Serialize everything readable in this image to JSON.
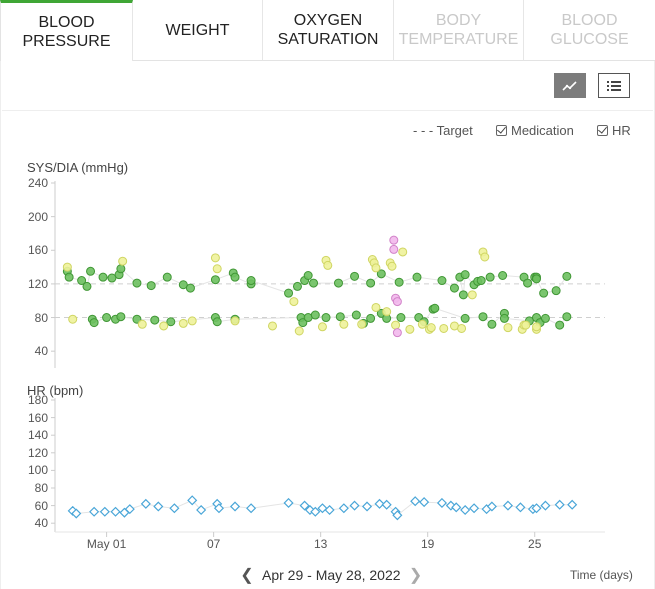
{
  "tabs": [
    {
      "line1": "Blood",
      "line2": "Pressure",
      "state": "active"
    },
    {
      "line1": "Weight",
      "line2": "",
      "state": "normal"
    },
    {
      "line1": "Oxygen",
      "line2": "Saturation",
      "state": "normal"
    },
    {
      "line1": "Body",
      "line2": "Temperature",
      "state": "disabled"
    },
    {
      "line1": "Blood",
      "line2": "Glucose",
      "state": "disabled"
    }
  ],
  "view_toggle": {
    "chart_icon": "line-chart-icon",
    "list_icon": "list-icon",
    "active": "chart"
  },
  "legend": {
    "target": "- - - Target",
    "medication": "Medication",
    "hr": "HR"
  },
  "colors": {
    "active_tab": "#3fa635",
    "sys_dia_dark": "#4aa83e",
    "sys_dia_light": "#e2e87f",
    "flagged": "#e69ce0",
    "hr": "#4aa6d8"
  },
  "date_nav": {
    "prev_icon": "chevron-left-icon",
    "label": "Apr 29 - May 28, 2022",
    "next_icon": "chevron-right-icon"
  },
  "x_axis_title": "Time (days)",
  "chart_data": [
    {
      "type": "scatter",
      "title": "SYS/DIA (mmHg)",
      "ylim": [
        20,
        240
      ],
      "yticks": [
        240,
        200,
        160,
        120,
        80,
        40
      ],
      "xticks": [
        {
          "x": 2.5,
          "label": "May 01"
        },
        {
          "x": 8.5,
          "label": "07"
        },
        {
          "x": 14.5,
          "label": "13"
        },
        {
          "x": 20.5,
          "label": "19"
        },
        {
          "x": 26.5,
          "label": "25"
        }
      ],
      "xlim": [
        0,
        31
      ],
      "target_lines": [
        120,
        80
      ],
      "series": [
        {
          "style": "dark",
          "points": [
            [
              0.3,
              135
            ],
            [
              0.4,
              128
            ],
            [
              1.1,
              124
            ],
            [
              1.4,
              117
            ],
            [
              1.6,
              135
            ],
            [
              1.7,
              78
            ],
            [
              1.8,
              74
            ],
            [
              2.3,
              128
            ],
            [
              2.5,
              80
            ],
            [
              2.8,
              127
            ],
            [
              3.0,
              78
            ],
            [
              3.2,
              131
            ],
            [
              3.3,
              81
            ],
            [
              3.3,
              138
            ],
            [
              4.2,
              121
            ],
            [
              4.2,
              78
            ],
            [
              5.0,
              118
            ],
            [
              5.2,
              77
            ],
            [
              5.9,
              128
            ],
            [
              6.1,
              75
            ],
            [
              6.8,
              119
            ],
            [
              7.2,
              115
            ],
            [
              8.6,
              125
            ],
            [
              8.6,
              80
            ],
            [
              8.7,
              75
            ],
            [
              9.6,
              133
            ],
            [
              9.7,
              128
            ],
            [
              9.7,
              78
            ],
            [
              10.6,
              120
            ],
            [
              10.6,
              124
            ],
            [
              12.7,
              109
            ],
            [
              13.2,
              117
            ],
            [
              13.4,
              80
            ],
            [
              13.5,
              74
            ],
            [
              13.6,
              124
            ],
            [
              13.8,
              130
            ],
            [
              13.8,
              80
            ],
            [
              14.1,
              121
            ],
            [
              14.2,
              83
            ],
            [
              14.8,
              80
            ],
            [
              15.5,
              121
            ],
            [
              15.6,
              81
            ],
            [
              16.4,
              129
            ],
            [
              16.5,
              83
            ],
            [
              16.9,
              73
            ],
            [
              17.3,
              121
            ],
            [
              17.3,
              79
            ],
            [
              17.9,
              132
            ],
            [
              17.9,
              85
            ],
            [
              18.2,
              79
            ],
            [
              18.9,
              122
            ],
            [
              19.0,
              80
            ],
            [
              19.9,
              128
            ],
            [
              20.0,
              80
            ],
            [
              20.3,
              75
            ],
            [
              20.8,
              90
            ],
            [
              20.9,
              91
            ],
            [
              21.3,
              124
            ],
            [
              22.0,
              115
            ],
            [
              22.3,
              128
            ],
            [
              22.5,
              107
            ],
            [
              22.6,
              131
            ],
            [
              22.6,
              79
            ],
            [
              23.1,
              119
            ],
            [
              23.3,
              123
            ],
            [
              23.5,
              124
            ],
            [
              23.6,
              81
            ],
            [
              24.0,
              128
            ],
            [
              24.1,
              72
            ],
            [
              24.7,
              130
            ],
            [
              24.8,
              85
            ],
            [
              24.8,
              79
            ],
            [
              25.9,
              128
            ],
            [
              26.1,
              121
            ],
            [
              26.2,
              76
            ],
            [
              26.5,
              128
            ],
            [
              26.6,
              128
            ],
            [
              26.6,
              80
            ],
            [
              26.6,
              126
            ],
            [
              26.8,
              74
            ],
            [
              27.0,
              109
            ],
            [
              27.1,
              79
            ],
            [
              27.7,
              112
            ],
            [
              27.9,
              71
            ],
            [
              28.3,
              129
            ],
            [
              28.3,
              81
            ]
          ]
        },
        {
          "style": "light",
          "points": [
            [
              0.3,
              140
            ],
            [
              0.6,
              78
            ],
            [
              3.4,
              147
            ],
            [
              4.5,
              72
            ],
            [
              5.7,
              70
            ],
            [
              6.8,
              73
            ],
            [
              7.3,
              76
            ],
            [
              8.6,
              151
            ],
            [
              8.7,
              138
            ],
            [
              9.7,
              76
            ],
            [
              11.8,
              70
            ],
            [
              13.0,
              99
            ],
            [
              13.3,
              64
            ],
            [
              14.6,
              69
            ],
            [
              14.8,
              148
            ],
            [
              14.9,
              142
            ],
            [
              15.8,
              72
            ],
            [
              16.8,
              72
            ],
            [
              17.4,
              149
            ],
            [
              17.5,
              145
            ],
            [
              17.6,
              92
            ],
            [
              17.6,
              139
            ],
            [
              18.2,
              87
            ],
            [
              18.4,
              145
            ],
            [
              18.5,
              141
            ],
            [
              18.7,
              71
            ],
            [
              19.1,
              158
            ],
            [
              19.5,
              66
            ],
            [
              20.2,
              72
            ],
            [
              20.6,
              66
            ],
            [
              20.7,
              68
            ],
            [
              21.4,
              67
            ],
            [
              22.0,
              70
            ],
            [
              22.4,
              67
            ],
            [
              23.0,
              107
            ],
            [
              23.6,
              158
            ],
            [
              23.7,
              152
            ],
            [
              25.0,
              68
            ],
            [
              25.8,
              66
            ],
            [
              25.9,
              71
            ],
            [
              26.0,
              71
            ],
            [
              26.6,
              66
            ],
            [
              26.6,
              69
            ]
          ]
        },
        {
          "style": "flagged",
          "points": [
            [
              18.6,
              172
            ],
            [
              18.6,
              161
            ],
            [
              18.7,
              103
            ],
            [
              18.8,
              62
            ],
            [
              18.8,
              99
            ]
          ]
        }
      ]
    },
    {
      "type": "scatter",
      "title": "HR (bpm)",
      "ylim": [
        30,
        180
      ],
      "yticks": [
        180,
        160,
        140,
        120,
        100,
        80,
        60,
        40
      ],
      "xlim": [
        0,
        31
      ],
      "series": [
        {
          "style": "hr",
          "points": [
            [
              0.6,
              54
            ],
            [
              0.8,
              51
            ],
            [
              1.8,
              53
            ],
            [
              2.4,
              53
            ],
            [
              3.0,
              53
            ],
            [
              3.5,
              52
            ],
            [
              3.8,
              56
            ],
            [
              4.7,
              62
            ],
            [
              5.4,
              59
            ],
            [
              6.3,
              57
            ],
            [
              7.3,
              66
            ],
            [
              7.8,
              55
            ],
            [
              8.7,
              62
            ],
            [
              8.8,
              57
            ],
            [
              9.7,
              59
            ],
            [
              10.6,
              57
            ],
            [
              12.7,
              63
            ],
            [
              13.6,
              60
            ],
            [
              13.9,
              55
            ],
            [
              14.2,
              53
            ],
            [
              14.6,
              57
            ],
            [
              15.0,
              55
            ],
            [
              15.8,
              57
            ],
            [
              16.4,
              60
            ],
            [
              17.1,
              59
            ],
            [
              17.8,
              62
            ],
            [
              18.2,
              61
            ],
            [
              18.7,
              53
            ],
            [
              18.8,
              49
            ],
            [
              19.8,
              65
            ],
            [
              20.3,
              64
            ],
            [
              21.3,
              63
            ],
            [
              21.8,
              60
            ],
            [
              22.1,
              58
            ],
            [
              22.6,
              55
            ],
            [
              23.1,
              57
            ],
            [
              23.8,
              56
            ],
            [
              24.1,
              59
            ],
            [
              25.0,
              60
            ],
            [
              25.7,
              58
            ],
            [
              26.4,
              56
            ],
            [
              26.6,
              57
            ],
            [
              27.1,
              60
            ],
            [
              27.9,
              61
            ],
            [
              28.6,
              61
            ]
          ]
        }
      ]
    }
  ]
}
